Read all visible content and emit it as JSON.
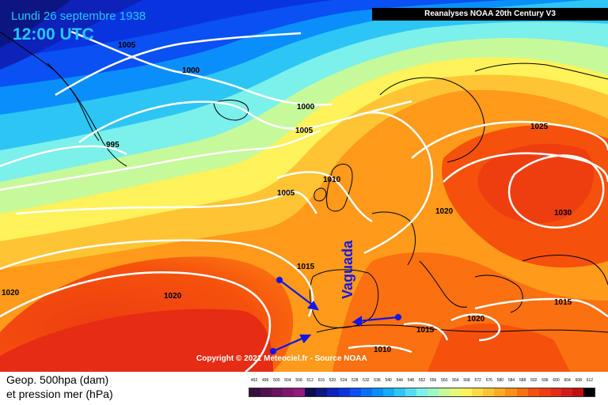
{
  "title": {
    "date": "Lundi 26 septembre 1938",
    "time": "12:00 UTC"
  },
  "source_label": "Reanalyses NOAA 20th Century V3",
  "copyright": "Copyright © 2021 Meteociel.fr - Source NOAA",
  "annotation": "Vaguada",
  "legend": {
    "line1": "Geop. 500hpa (dam)",
    "line2": "et pression mer (hPa)",
    "scale_values": [
      "492",
      "496",
      "500",
      "504",
      "508",
      "512",
      "516",
      "520",
      "524",
      "528",
      "532",
      "536",
      "540",
      "544",
      "548",
      "552",
      "556",
      "560",
      "564",
      "568",
      "572",
      "576",
      "580",
      "584",
      "588",
      "592",
      "596",
      "600",
      "604",
      "608",
      "612"
    ],
    "scale_colors": [
      "#3a0c3f",
      "#52104f",
      "#6a1460",
      "#80176f",
      "#92197c",
      "#0b0b4e",
      "#0c1682",
      "#0c22b8",
      "#0a33e0",
      "#0a50f2",
      "#0a70f8",
      "#0a8ffa",
      "#14acf7",
      "#2dc6f4",
      "#55dcf2",
      "#7cf0ea",
      "#9df7c4",
      "#c6f99a",
      "#e8f975",
      "#fff25a",
      "#ffdc46",
      "#ffc434",
      "#ffab24",
      "#ff9015",
      "#fb7010",
      "#f5510d",
      "#ee3e10",
      "#e62c14",
      "#d51a1a",
      "#bf1010",
      "#000000"
    ]
  },
  "isobars": [
    {
      "value": "1005"
    },
    {
      "value": "1000"
    },
    {
      "value": "1000"
    },
    {
      "value": "1005"
    },
    {
      "value": "995"
    },
    {
      "value": "1005"
    },
    {
      "value": "1010"
    },
    {
      "value": "1015"
    },
    {
      "value": "1020"
    },
    {
      "value": "1020"
    },
    {
      "value": "1020"
    },
    {
      "value": "1025"
    },
    {
      "value": "1030"
    },
    {
      "value": "1015"
    },
    {
      "value": "1015"
    },
    {
      "value": "1020"
    },
    {
      "value": "1010"
    }
  ]
}
